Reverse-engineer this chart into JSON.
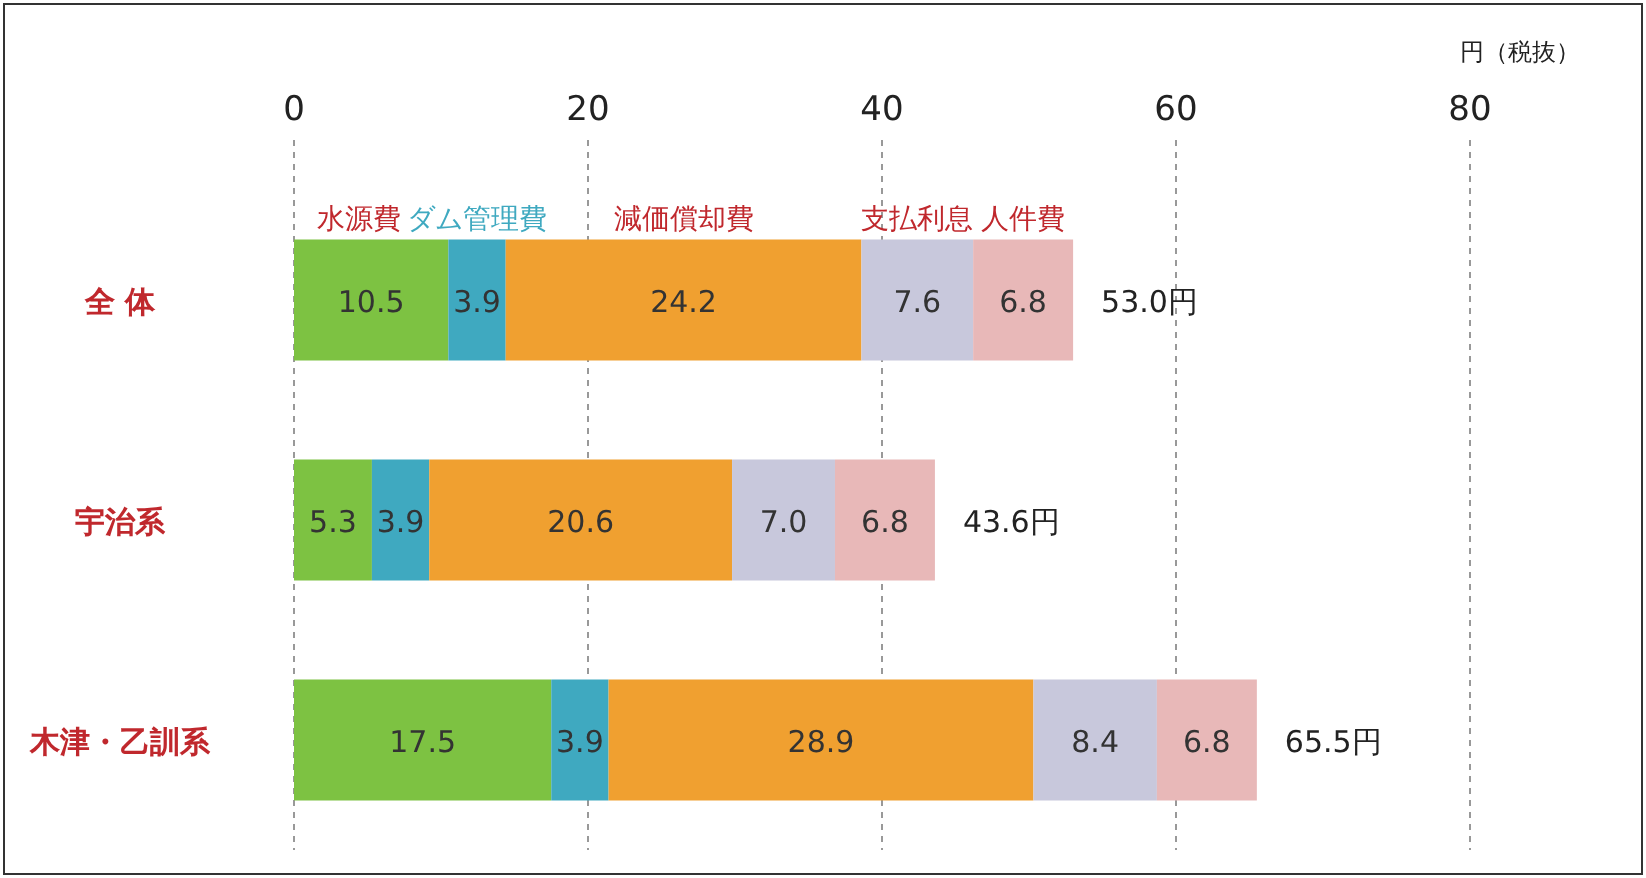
{
  "chart_data": {
    "type": "bar",
    "orientation": "horizontal",
    "stacked": true,
    "categories": [
      "全 体",
      "宇治系",
      "木津・乙訓系"
    ],
    "series": [
      {
        "name": "水源費",
        "color": "#7dc242",
        "values": [
          10.5,
          5.3,
          17.5
        ]
      },
      {
        "name": "ダム管理費",
        "color": "#3fa9c0",
        "values": [
          3.9,
          3.9,
          3.9
        ]
      },
      {
        "name": "減価償却費",
        "color": "#f0a030",
        "values": [
          24.2,
          20.6,
          28.9
        ]
      },
      {
        "name": "支払利息",
        "color": "#c8c8dc",
        "values": [
          7.6,
          7.0,
          8.4
        ],
        "value_labels": [
          "7.6",
          "7.0",
          "8.4"
        ]
      },
      {
        "name": "人件費",
        "color": "#e8b8b8",
        "values": [
          6.8,
          6.8,
          6.8
        ]
      }
    ],
    "xlim": [
      0,
      80
    ],
    "xticks": [
      0,
      20,
      40,
      60,
      80
    ],
    "xlabel": "円（税抜）",
    "grid": "x",
    "data_labels": true,
    "totals": [
      "53.0円",
      "43.6円",
      "65.5円"
    ]
  }
}
